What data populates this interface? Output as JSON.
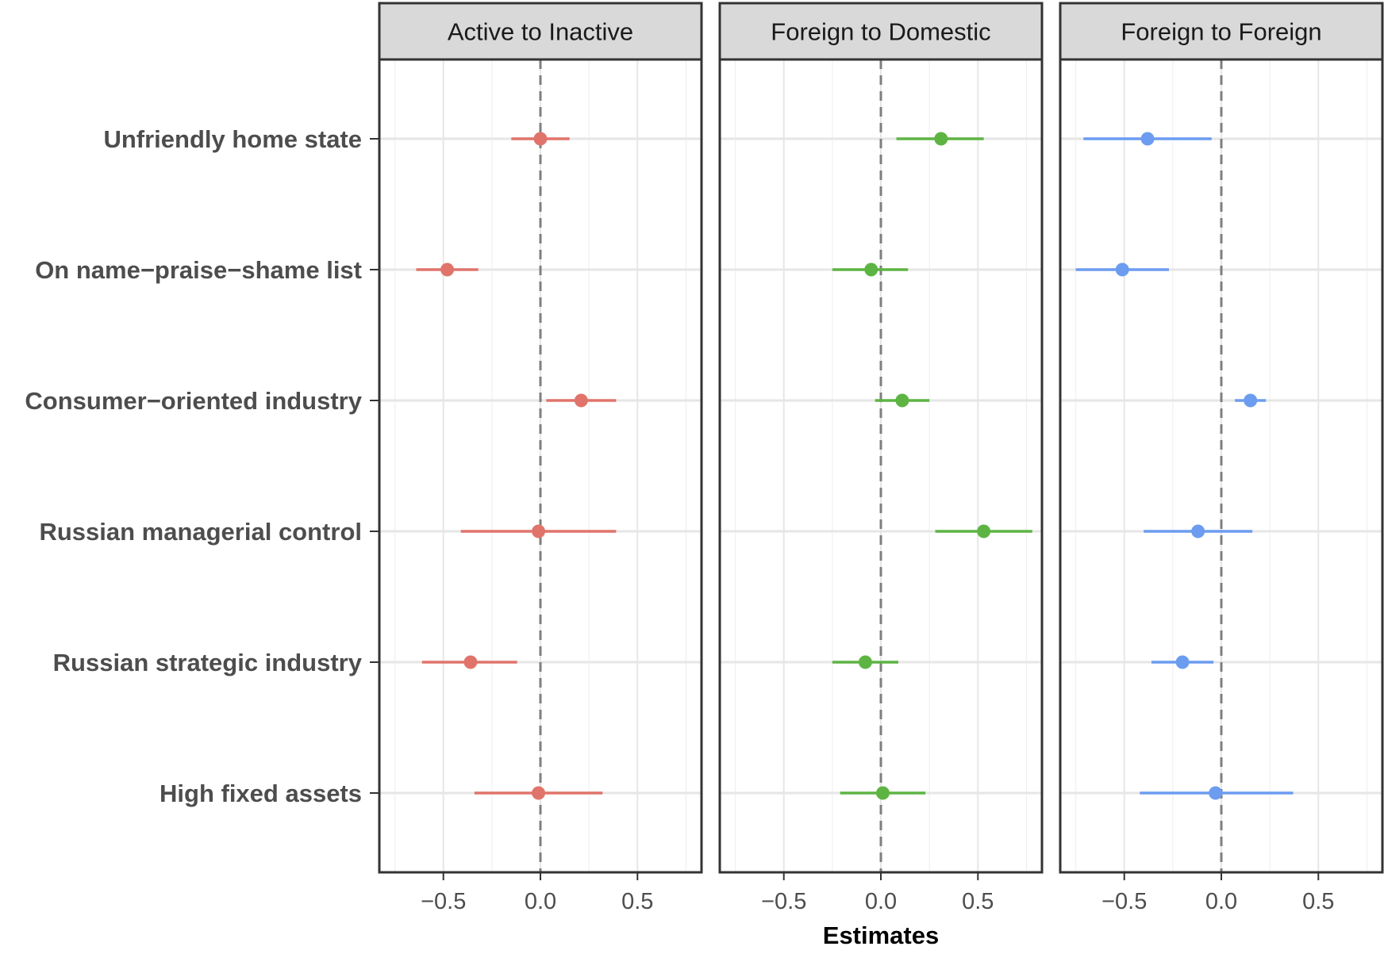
{
  "chart_data": {
    "type": "forest",
    "xlabel": "Estimates",
    "xlim": [
      -0.83,
      0.83
    ],
    "xticks": [
      -0.5,
      0.0,
      0.5
    ],
    "xtick_labels": [
      "−0.5",
      "0.0",
      "0.5"
    ],
    "reference_line": 0,
    "grid": true,
    "categories": [
      "Unfriendly home state",
      "On name−praise−shame list",
      "Consumer−oriented industry",
      "Russian managerial control",
      "Russian strategic industry",
      "High fixed assets"
    ],
    "panels": [
      {
        "title": "Active to Inactive",
        "color": "#E0746B",
        "points": [
          {
            "estimate": 0.0,
            "low": -0.15,
            "high": 0.15
          },
          {
            "estimate": -0.48,
            "low": -0.64,
            "high": -0.32
          },
          {
            "estimate": 0.21,
            "low": 0.03,
            "high": 0.39
          },
          {
            "estimate": -0.01,
            "low": -0.41,
            "high": 0.39
          },
          {
            "estimate": -0.36,
            "low": -0.61,
            "high": -0.12
          },
          {
            "estimate": -0.01,
            "low": -0.34,
            "high": 0.32
          }
        ]
      },
      {
        "title": "Foreign to Domestic",
        "color": "#5DB443",
        "points": [
          {
            "estimate": 0.31,
            "low": 0.08,
            "high": 0.53
          },
          {
            "estimate": -0.05,
            "low": -0.25,
            "high": 0.14
          },
          {
            "estimate": 0.11,
            "low": -0.03,
            "high": 0.25
          },
          {
            "estimate": 0.53,
            "low": 0.28,
            "high": 0.78
          },
          {
            "estimate": -0.08,
            "low": -0.25,
            "high": 0.09
          },
          {
            "estimate": 0.01,
            "low": -0.21,
            "high": 0.23
          }
        ]
      },
      {
        "title": "Foreign to Foreign",
        "color": "#6C9CF0",
        "points": [
          {
            "estimate": -0.38,
            "low": -0.71,
            "high": -0.05
          },
          {
            "estimate": -0.51,
            "low": -0.75,
            "high": -0.27
          },
          {
            "estimate": 0.15,
            "low": 0.07,
            "high": 0.23
          },
          {
            "estimate": -0.12,
            "low": -0.4,
            "high": 0.16
          },
          {
            "estimate": -0.2,
            "low": -0.36,
            "high": -0.04
          },
          {
            "estimate": -0.03,
            "low": -0.42,
            "high": 0.37
          }
        ]
      }
    ]
  }
}
